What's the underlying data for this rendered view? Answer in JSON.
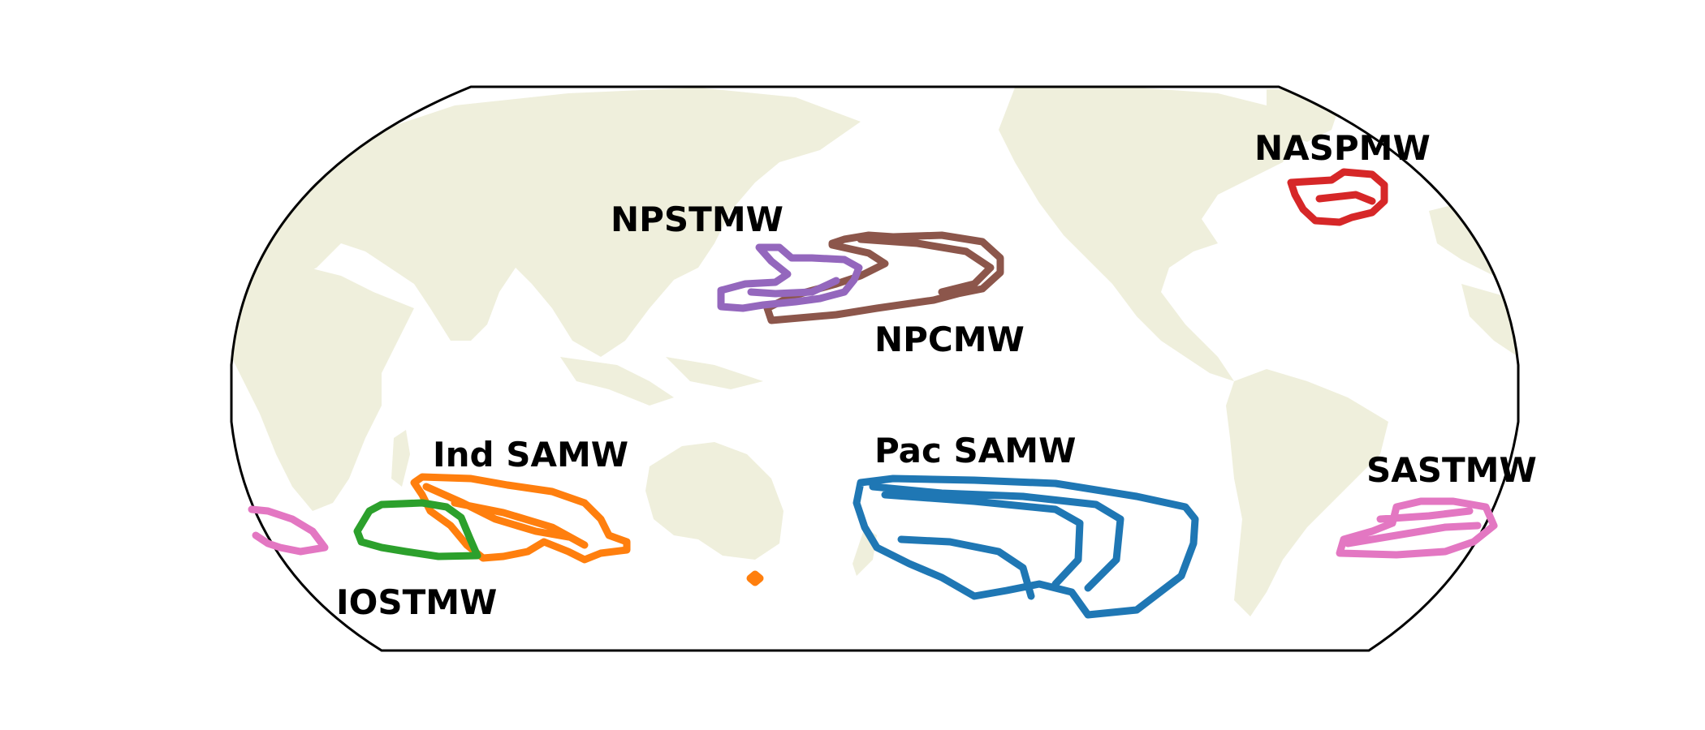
{
  "map": {
    "projection": "Robinson",
    "central_longitude": 180,
    "land_color": "#efefdc",
    "frame_color": "#000000"
  },
  "water_masses": [
    {
      "name": "NASPMW",
      "color": "#d62728"
    },
    {
      "name": "NPSTMW",
      "color": "#8c564b"
    },
    {
      "name": "NPCMW",
      "color": "#9467bd"
    },
    {
      "name": "Ind SAMW",
      "color": "#ff7f0e"
    },
    {
      "name": "IOSTMW",
      "color": "#2ca02c"
    },
    {
      "name": "Pac SAMW",
      "color": "#1f77b4"
    },
    {
      "name": "SASTMW",
      "color": "#e377c2"
    }
  ]
}
